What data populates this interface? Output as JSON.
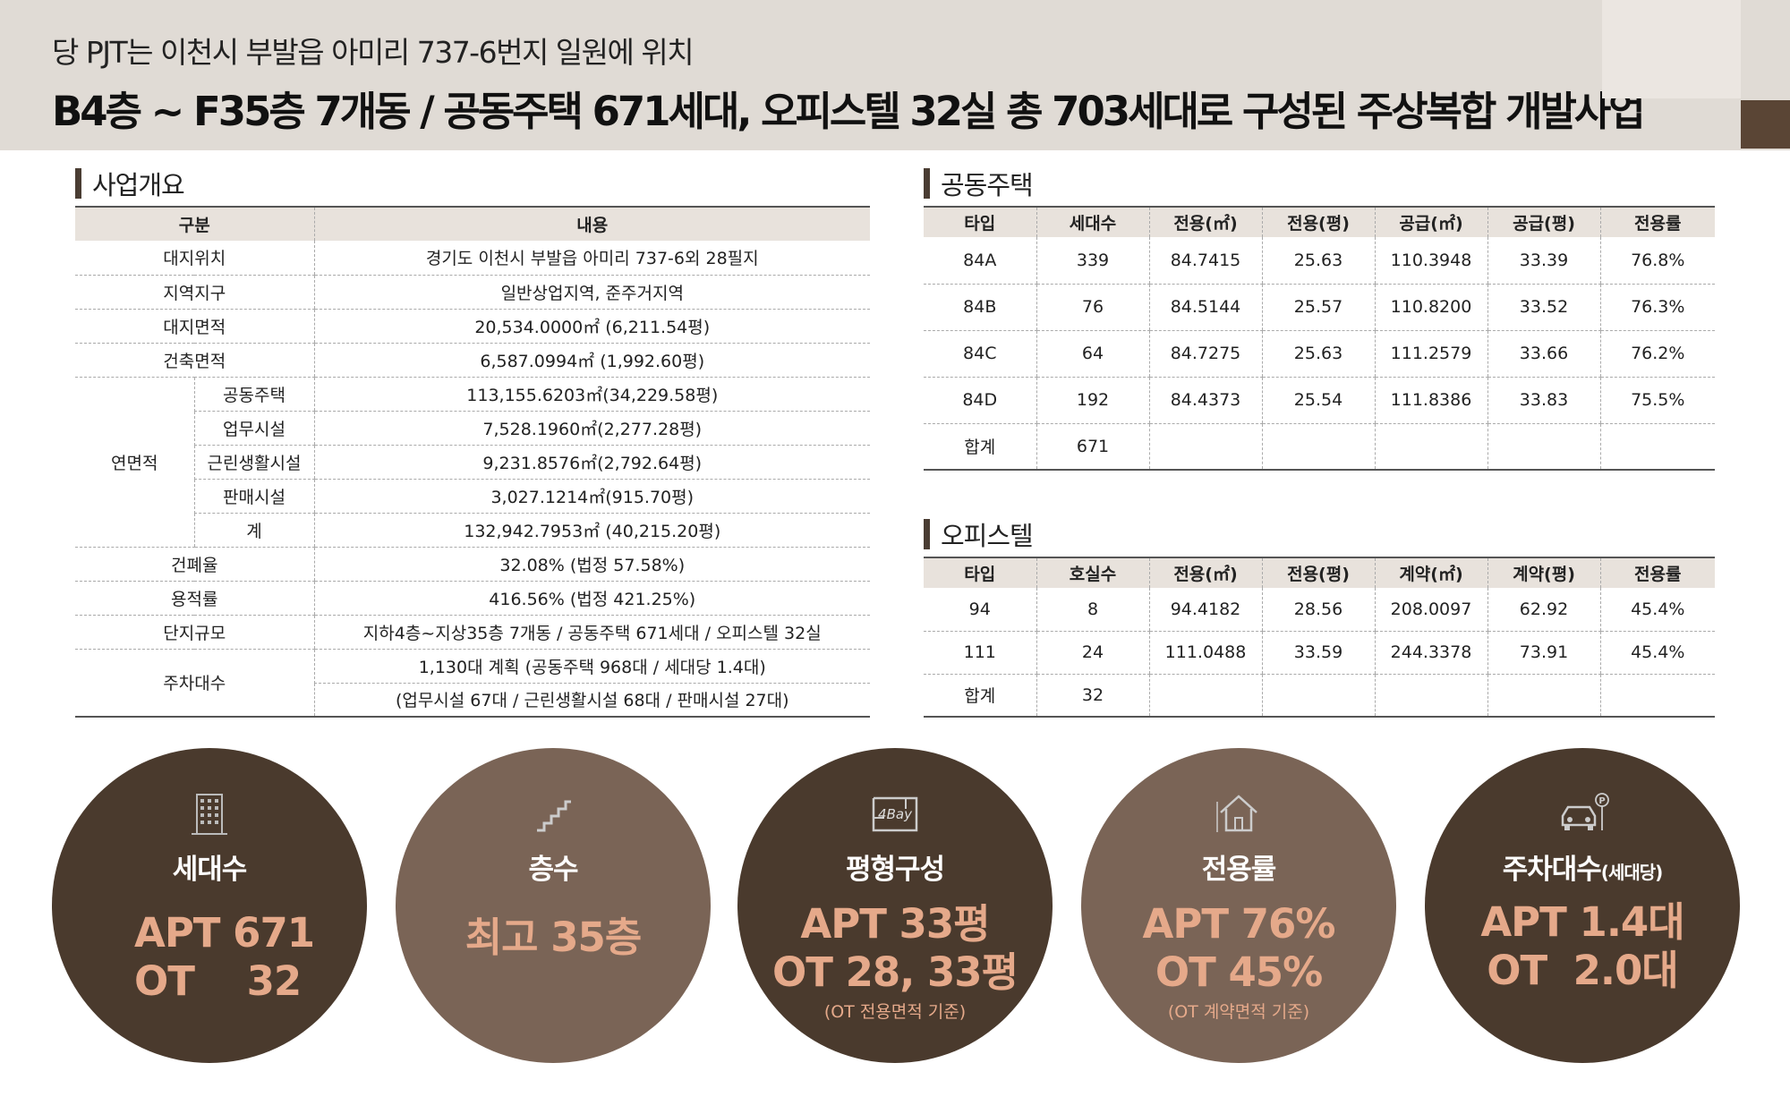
{
  "header": {
    "subtitle": "당 PJT는 이천시 부발읍 아미리 737-6번지 일원에 위치",
    "headline": "B4층 ~ F35층 7개동 / 공동주택 671세대, 오피스텔 32실 총 703세대로 구성된 주상복합 개발사업"
  },
  "overview": {
    "title": "사업개요",
    "col_category": "구분",
    "col_content": "내용",
    "rows": [
      {
        "label": "대지위치",
        "value": "경기도 이천시 부발읍 아미리 737-6외 28필지"
      },
      {
        "label": "지역지구",
        "value": "일반상업지역, 준주거지역"
      },
      {
        "label": "대지면적",
        "value": "20,534.0000㎡ (6,211.54평)"
      },
      {
        "label": "건축면적",
        "value": "6,587.0994㎡ (1,992.60평)"
      }
    ],
    "floor_area_label": "연면적",
    "floor_area_rows": [
      {
        "label": "공동주택",
        "value": "113,155.6203㎡(34,229.58평)"
      },
      {
        "label": "업무시설",
        "value": "7,528.1960㎡(2,277.28평)"
      },
      {
        "label": "근린생활시설",
        "value": "9,231.8576㎡(2,792.64평)"
      },
      {
        "label": "판매시설",
        "value": "3,027.1214㎡(915.70평)"
      },
      {
        "label": "계",
        "value": "132,942.7953㎡ (40,215.20평)"
      }
    ],
    "rows2": [
      {
        "label": "건폐율",
        "value": "32.08% (법정 57.58%)"
      },
      {
        "label": "용적률",
        "value": "416.56% (법정 421.25%)"
      },
      {
        "label": "단지규모",
        "value": "지하4층~지상35층 7개동 / 공동주택 671세대 / 오피스텔 32실"
      }
    ],
    "parking_label": "주차대수",
    "parking_line1": "1,130대 계획 (공동주택 968대 / 세대당 1.4대)",
    "parking_line2": "(업무시설 67대 / 근린생활시설 68대 / 판매시설 27대)"
  },
  "apartment": {
    "title": "공동주택",
    "headers": [
      "타입",
      "세대수",
      "전용(㎡)",
      "전용(평)",
      "공급(㎡)",
      "공급(평)",
      "전용률"
    ],
    "rows": [
      [
        "84A",
        "339",
        "84.7415",
        "25.63",
        "110.3948",
        "33.39",
        "76.8%"
      ],
      [
        "84B",
        "76",
        "84.5144",
        "25.57",
        "110.8200",
        "33.52",
        "76.3%"
      ],
      [
        "84C",
        "64",
        "84.7275",
        "25.63",
        "111.2579",
        "33.66",
        "76.2%"
      ],
      [
        "84D",
        "192",
        "84.4373",
        "25.54",
        "111.8386",
        "33.83",
        "75.5%"
      ],
      [
        "합계",
        "671",
        "",
        "",
        "",
        "",
        ""
      ]
    ]
  },
  "officetel": {
    "title": "오피스텔",
    "headers": [
      "타입",
      "호실수",
      "전용(㎡)",
      "전용(평)",
      "계약(㎡)",
      "계약(평)",
      "전용률"
    ],
    "rows": [
      [
        "94",
        "8",
        "94.4182",
        "28.56",
        "208.0097",
        "62.92",
        "45.4%"
      ],
      [
        "111",
        "24",
        "111.0488",
        "33.59",
        "244.3378",
        "73.91",
        "45.4%"
      ],
      [
        "합계",
        "32",
        "",
        "",
        "",
        "",
        ""
      ]
    ]
  },
  "circles": [
    {
      "icon": "building-icon",
      "label": "세대수",
      "label_small": "",
      "line1": "APT 671",
      "line2": "OT    32",
      "note": ""
    },
    {
      "icon": "stairs-icon",
      "label": "층수",
      "label_small": "",
      "line1": "최고 35층",
      "line2": "",
      "note": ""
    },
    {
      "icon": "floorplan-4bay-icon",
      "icon_text": "4Bay",
      "label": "평형구성",
      "label_small": "",
      "line1": "APT 33평",
      "line2": "OT 28, 33평",
      "note": "(OT 전용면적 기준)"
    },
    {
      "icon": "house-icon",
      "label": "전용률",
      "label_small": "",
      "line1": "APT 76%",
      "line2": "OT 45%",
      "note": "(OT 계약면적 기준)"
    },
    {
      "icon": "car-parking-icon",
      "icon_text": "P",
      "label": "주차대수",
      "label_small": "(세대당)",
      "line1": "APT 1.4대",
      "line2": "OT  2.0대",
      "note": ""
    }
  ],
  "colors": {
    "dark_circle": "#4a3a2d",
    "light_circle": "#7a6456",
    "accent_text": "#e5a98a",
    "header_band": "#e0dbd5"
  }
}
